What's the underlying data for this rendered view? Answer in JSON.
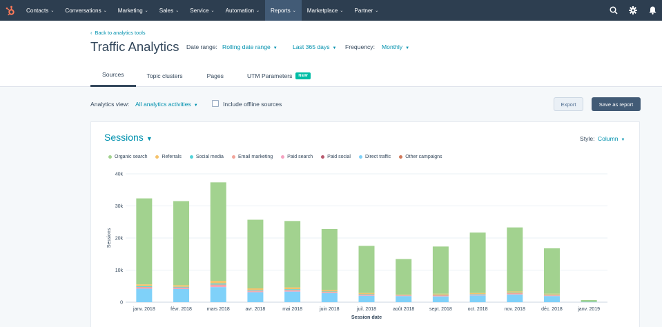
{
  "nav": {
    "items": [
      {
        "label": "Contacts",
        "active": false
      },
      {
        "label": "Conversations",
        "active": false
      },
      {
        "label": "Marketing",
        "active": false
      },
      {
        "label": "Sales",
        "active": false
      },
      {
        "label": "Service",
        "active": false
      },
      {
        "label": "Automation",
        "active": false
      },
      {
        "label": "Reports",
        "active": true
      },
      {
        "label": "Marketplace",
        "active": false
      },
      {
        "label": "Partner",
        "active": false
      }
    ],
    "icons": [
      "search-icon",
      "settings-icon",
      "notifications-icon"
    ],
    "bg_color": "#2d3e50",
    "accent_color": "#ff7a59"
  },
  "header": {
    "back_link": "Back to analytics tools",
    "title": "Traffic Analytics",
    "date_range_label": "Date range:",
    "date_range_value": "Rolling date range",
    "period_value": "Last 365 days",
    "frequency_label": "Frequency:",
    "frequency_value": "Monthly"
  },
  "tabs": [
    {
      "label": "Sources",
      "active": true
    },
    {
      "label": "Topic clusters",
      "active": false
    },
    {
      "label": "Pages",
      "active": false
    },
    {
      "label": "UTM Parameters",
      "active": false,
      "badge": "NEW"
    }
  ],
  "toolbar": {
    "analytics_view_label": "Analytics view:",
    "analytics_view_value": "All analytics activities",
    "offline_sources_label": "Include offline sources",
    "offline_sources_checked": false,
    "export_label": "Export",
    "save_label": "Save as report"
  },
  "card": {
    "metric": "Sessions",
    "style_label": "Style:",
    "style_value": "Column"
  },
  "chart_data": {
    "type": "bar",
    "stacked": true,
    "xlabel": "Session date",
    "ylabel": "Sessions",
    "ylim": [
      0,
      40000
    ],
    "yticks": [
      0,
      10000,
      20000,
      30000,
      40000
    ],
    "ytick_labels": [
      "0",
      "10k",
      "20k",
      "30k",
      "40k"
    ],
    "grid": true,
    "legend_position": "top-left",
    "categories": [
      "janv. 2018",
      "févr. 2018",
      "mars 2018",
      "avr. 2018",
      "mai 2018",
      "juin 2018",
      "juil. 2018",
      "août 2018",
      "sept. 2018",
      "oct. 2018",
      "nov. 2018",
      "déc. 2018",
      "janv. 2019"
    ],
    "series": [
      {
        "name": "Direct traffic",
        "color": "#7fd1f9",
        "values": [
          4200,
          4100,
          4700,
          3100,
          3300,
          2800,
          2000,
          1900,
          1800,
          2100,
          2400,
          1900,
          100
        ]
      },
      {
        "name": "Paid social",
        "color": "#b85a6e",
        "values": [
          0,
          0,
          0,
          0,
          0,
          0,
          0,
          0,
          0,
          0,
          0,
          0,
          0
        ]
      },
      {
        "name": "Paid search",
        "color": "#f5a2c0",
        "values": [
          200,
          200,
          300,
          200,
          200,
          150,
          150,
          100,
          100,
          100,
          100,
          100,
          0
        ]
      },
      {
        "name": "Email marketing",
        "color": "#f2a49a",
        "values": [
          350,
          300,
          500,
          300,
          300,
          250,
          200,
          150,
          250,
          200,
          300,
          200,
          0
        ]
      },
      {
        "name": "Social media",
        "color": "#51d3d9",
        "values": [
          250,
          200,
          350,
          200,
          250,
          150,
          150,
          100,
          150,
          150,
          150,
          150,
          0
        ]
      },
      {
        "name": "Referrals",
        "color": "#f5c26b",
        "values": [
          550,
          500,
          800,
          500,
          550,
          450,
          350,
          200,
          350,
          300,
          400,
          300,
          0
        ]
      },
      {
        "name": "Organic search",
        "color": "#a2d28f",
        "values": [
          26800,
          26200,
          30700,
          21400,
          20700,
          19000,
          14700,
          11000,
          14700,
          18850,
          19950,
          14150,
          550
        ]
      },
      {
        "name": "Other campaigns",
        "color": "#d0795a",
        "values": [
          0,
          0,
          0,
          0,
          0,
          0,
          0,
          0,
          0,
          0,
          0,
          0,
          0
        ]
      }
    ],
    "legend_order": [
      "Organic search",
      "Referrals",
      "Social media",
      "Email marketing",
      "Paid search",
      "Paid social",
      "Direct traffic",
      "Other campaigns"
    ]
  }
}
